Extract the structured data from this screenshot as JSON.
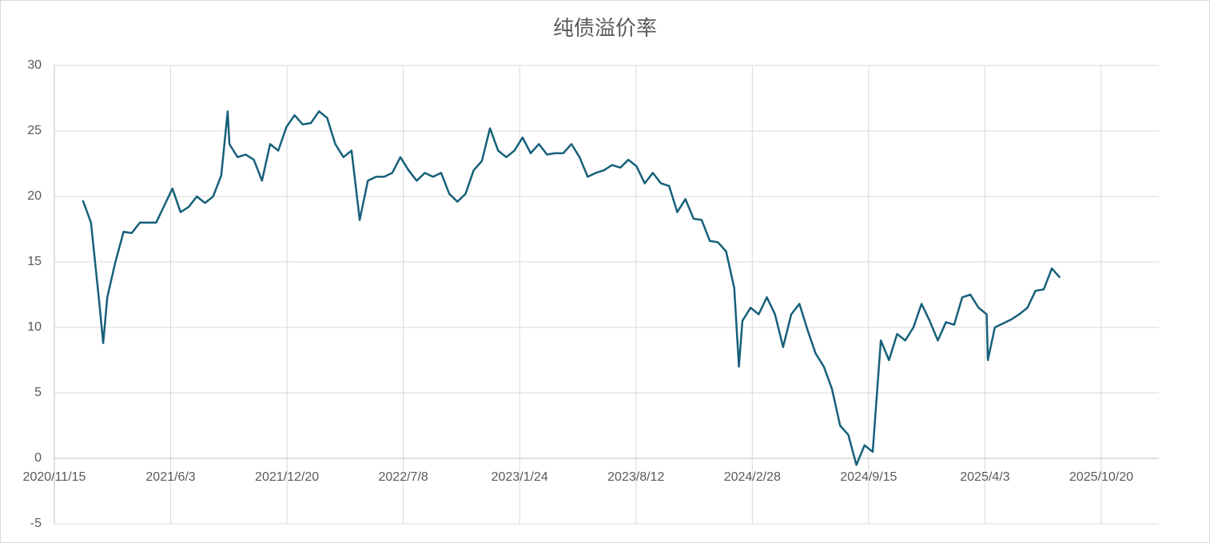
{
  "chart_data": {
    "type": "line",
    "title": "纯债溢价率",
    "x": [
      "2021/1/3",
      "2021/1/17",
      "2021/1/31",
      "2021/2/7",
      "2021/2/14",
      "2021/2/28",
      "2021/3/14",
      "2021/3/28",
      "2021/4/11",
      "2021/4/25",
      "2021/5/9",
      "2021/5/23",
      "2021/6/6",
      "2021/6/20",
      "2021/7/4",
      "2021/7/18",
      "2021/8/1",
      "2021/8/15",
      "2021/8/29",
      "2021/9/9",
      "2021/9/12",
      "2021/9/26",
      "2021/10/10",
      "2021/10/24",
      "2021/11/7",
      "2021/11/21",
      "2021/12/5",
      "2021/12/19",
      "2022/1/2",
      "2022/1/16",
      "2022/1/30",
      "2022/2/13",
      "2022/2/27",
      "2022/3/13",
      "2022/3/27",
      "2022/4/10",
      "2022/4/24",
      "2022/5/8",
      "2022/5/22",
      "2022/6/5",
      "2022/6/19",
      "2022/7/3",
      "2022/7/17",
      "2022/7/31",
      "2022/8/14",
      "2022/8/28",
      "2022/9/11",
      "2022/9/25",
      "2022/10/9",
      "2022/10/23",
      "2022/11/6",
      "2022/11/20",
      "2022/12/4",
      "2022/12/18",
      "2023/1/1",
      "2023/1/15",
      "2023/1/29",
      "2023/2/12",
      "2023/2/26",
      "2023/3/12",
      "2023/3/26",
      "2023/4/9",
      "2023/4/23",
      "2023/5/7",
      "2023/5/21",
      "2023/6/4",
      "2023/6/18",
      "2023/7/2",
      "2023/7/16",
      "2023/7/30",
      "2023/8/13",
      "2023/8/27",
      "2023/9/10",
      "2023/9/24",
      "2023/10/8",
      "2023/10/22",
      "2023/11/5",
      "2023/11/19",
      "2023/12/3",
      "2023/12/17",
      "2023/12/31",
      "2024/1/14",
      "2024/1/28",
      "2024/2/5",
      "2024/2/11",
      "2024/2/25",
      "2024/3/10",
      "2024/3/24",
      "2024/4/7",
      "2024/4/21",
      "2024/5/5",
      "2024/5/19",
      "2024/6/2",
      "2024/6/16",
      "2024/6/30",
      "2024/7/14",
      "2024/7/28",
      "2024/8/11",
      "2024/8/25",
      "2024/9/8",
      "2024/9/22",
      "2024/10/6",
      "2024/10/20",
      "2024/11/3",
      "2024/11/17",
      "2024/12/1",
      "2024/12/15",
      "2024/12/29",
      "2025/1/12",
      "2025/1/26",
      "2025/2/9",
      "2025/2/23",
      "2025/3/9",
      "2025/3/23",
      "2025/4/6",
      "2025/4/8",
      "2025/4/20",
      "2025/5/4",
      "2025/5/18",
      "2025/6/1",
      "2025/6/15",
      "2025/6/29",
      "2025/7/13",
      "2025/7/27",
      "2025/8/10"
    ],
    "series": [
      {
        "name": "纯债溢价率",
        "color": "#16607a",
        "values": [
          19.7,
          18,
          12,
          8.8,
          12.3,
          15,
          17.3,
          17.2,
          18,
          18,
          18,
          19.3,
          20.6,
          18.8,
          19.2,
          20,
          19.5,
          20,
          21.6,
          26.5,
          24,
          23,
          23.2,
          22.8,
          21.2,
          24,
          23.5,
          25.3,
          26.2,
          25.5,
          25.6,
          26.5,
          26,
          24,
          23,
          23.5,
          18.2,
          21.2,
          21.5,
          21.5,
          21.8,
          23,
          22,
          21.2,
          21.8,
          21.5,
          21.8,
          20.2,
          19.6,
          20.2,
          22,
          22.7,
          25.2,
          23.5,
          23,
          23.5,
          24.5,
          23.3,
          24,
          23.2,
          23.3,
          23.3,
          24,
          23,
          21.5,
          21.8,
          22,
          22.4,
          22.2,
          22.8,
          22.3,
          21,
          21.8,
          21,
          20.8,
          18.8,
          19.8,
          18.3,
          18.2,
          16.6,
          16.5,
          15.8,
          13,
          7,
          10.5,
          11.5,
          11,
          12.3,
          11,
          8.5,
          11,
          11.8,
          9.8,
          8,
          7,
          5.3,
          2.5,
          1.8,
          -0.5,
          1,
          0.5,
          9,
          7.5,
          9.5,
          9,
          10,
          11.8,
          10.5,
          9,
          10.4,
          10.2,
          12.3,
          12.5,
          11.5,
          11,
          7.5,
          10,
          10.3,
          10.6,
          11,
          11.5,
          12.8,
          12.9,
          14.5,
          13.8
        ]
      }
    ],
    "xlim": [
      "2020/11/15",
      "2026/1/27"
    ],
    "xticks": [
      "2020/11/15",
      "2021/6/3",
      "2021/12/20",
      "2022/7/8",
      "2023/1/24",
      "2023/8/12",
      "2024/2/28",
      "2024/9/15",
      "2025/4/3",
      "2025/10/20"
    ],
    "ylim": [
      -5,
      30
    ],
    "yticks": [
      -5,
      0,
      5,
      10,
      15,
      20,
      25,
      30
    ],
    "grid": true
  }
}
